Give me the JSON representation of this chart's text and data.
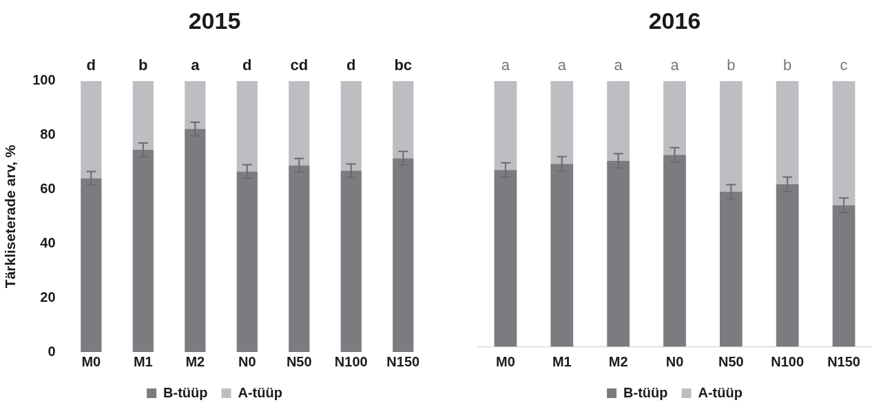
{
  "chart_data": [
    {
      "type": "bar",
      "title": "2015",
      "ylabel": "Tärkliseterade arv, %",
      "categories": [
        "M0",
        "M1",
        "M2",
        "N0",
        "N50",
        "N100",
        "N150"
      ],
      "stacked": true,
      "series": [
        {
          "name": "B-tüüp",
          "color": "#7b7c80",
          "values": [
            64.1,
            74.6,
            82.3,
            66.6,
            68.9,
            66.9,
            71.5
          ],
          "errors": [
            2.5,
            2.5,
            2.5,
            2.5,
            2.5,
            2.5,
            2.5
          ]
        },
        {
          "name": "A-tüüp",
          "color": "#bdbec1",
          "values": [
            35.9,
            25.4,
            17.7,
            33.4,
            31.1,
            33.1,
            28.5
          ]
        }
      ],
      "ylim": [
        0,
        100
      ],
      "yticks": [
        0,
        20,
        40,
        60,
        80,
        100
      ],
      "grid": false,
      "legend": "bottom",
      "annotations": [
        "d",
        "b",
        "a",
        "d",
        "cd",
        "d",
        "bc"
      ]
    },
    {
      "type": "bar",
      "title": "2016",
      "categories": [
        "M0",
        "M1",
        "M2",
        "N0",
        "N50",
        "N100",
        "N150"
      ],
      "stacked": true,
      "series": [
        {
          "name": "B-tüüp",
          "color": "#7b7c80",
          "values": [
            66.5,
            68.8,
            69.9,
            72.2,
            58.3,
            61.1,
            53.2
          ],
          "errors": [
            2.7,
            2.7,
            2.7,
            2.7,
            2.7,
            2.7,
            2.7
          ]
        },
        {
          "name": "A-tüüp",
          "color": "#bdbec1",
          "values": [
            33.5,
            31.2,
            30.1,
            27.8,
            41.7,
            38.9,
            46.8
          ]
        }
      ],
      "ylim": [
        0,
        100
      ],
      "yticks": [
        0,
        20,
        40,
        60,
        80,
        100
      ],
      "grid": false,
      "legend": "bottom",
      "tick_labels": "x",
      "annotations": [
        "a",
        "a",
        "a",
        "a",
        "b",
        "b",
        "c"
      ]
    }
  ]
}
